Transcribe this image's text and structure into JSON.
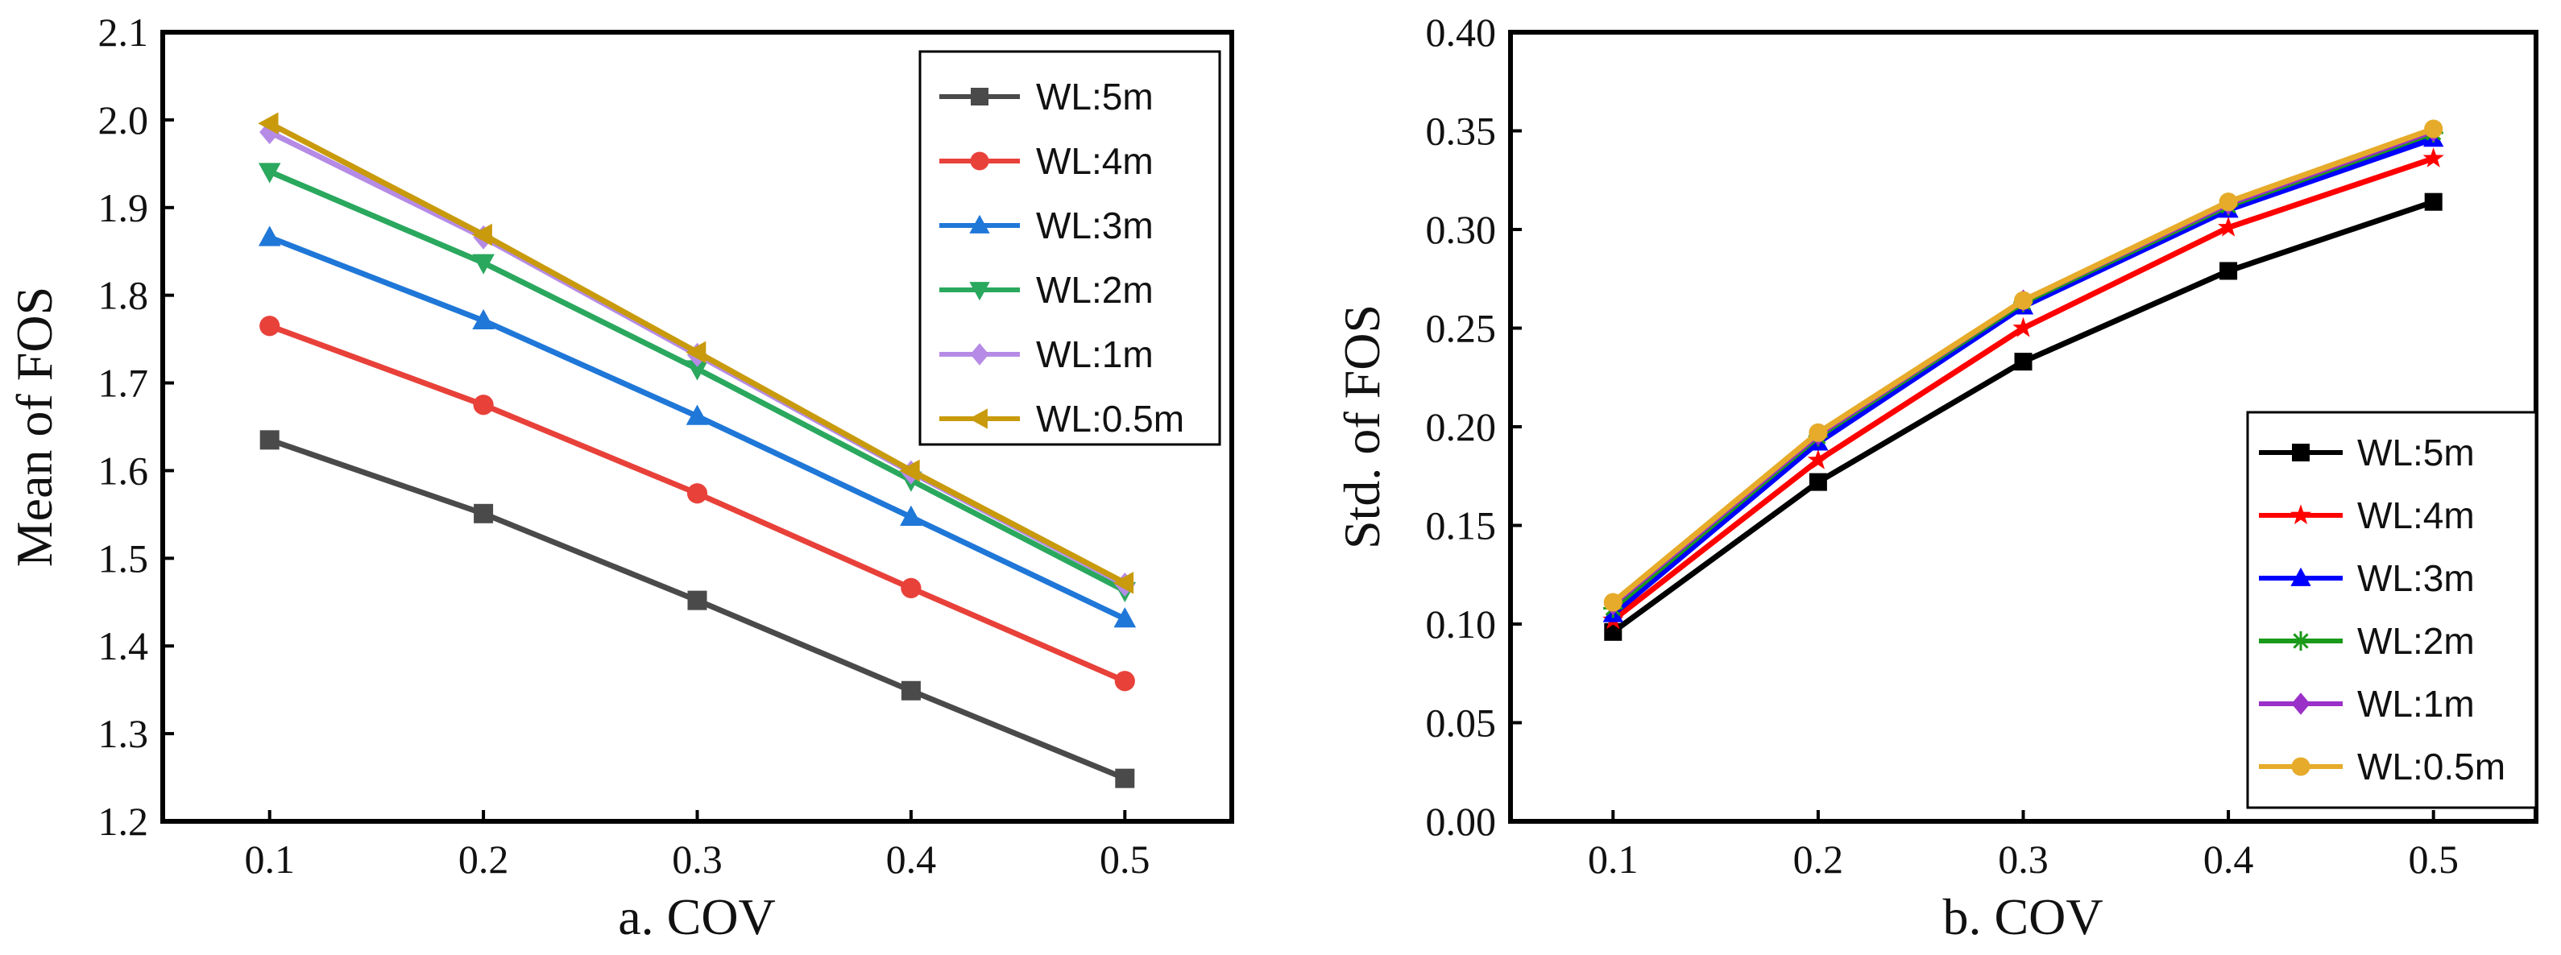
{
  "chart_data": [
    {
      "type": "line",
      "title": "",
      "xlabel": "a. COV",
      "ylabel": "Mean of FOS",
      "x": [
        0.1,
        0.2,
        0.3,
        0.4,
        0.5
      ],
      "x_ticks": [
        "0.1",
        "0.2",
        "0.3",
        "0.4",
        "0.5"
      ],
      "xlim": [
        0.05,
        0.55
      ],
      "ylim": [
        1.2,
        2.1
      ],
      "y_ticks": [
        "1.2",
        "1.3",
        "1.4",
        "1.5",
        "1.6",
        "1.7",
        "1.8",
        "1.9",
        "2.0",
        "2.1"
      ],
      "legend_position": "top-right",
      "series": [
        {
          "name": "WL:5m",
          "values": [
            1.635,
            1.551,
            1.452,
            1.349,
            1.249
          ],
          "color": "#4a4a4a",
          "marker": "square"
        },
        {
          "name": "WL:4m",
          "values": [
            1.765,
            1.675,
            1.574,
            1.466,
            1.36
          ],
          "color": "#e8413a",
          "marker": "circle"
        },
        {
          "name": "WL:3m",
          "values": [
            1.866,
            1.771,
            1.662,
            1.547,
            1.431
          ],
          "color": "#1f77d8",
          "marker": "triangle-up"
        },
        {
          "name": "WL:2m",
          "values": [
            1.941,
            1.837,
            1.716,
            1.589,
            1.463
          ],
          "color": "#2aa85e",
          "marker": "triangle-down"
        },
        {
          "name": "WL:1m",
          "values": [
            1.986,
            1.866,
            1.732,
            1.598,
            1.47
          ],
          "color": "#b58be6",
          "marker": "diamond"
        },
        {
          "name": "WL:0.5m",
          "values": [
            1.996,
            1.869,
            1.735,
            1.6,
            1.472
          ],
          "color": "#c89a0c",
          "marker": "triangle-left"
        }
      ]
    },
    {
      "type": "line",
      "title": "",
      "xlabel": "b. COV",
      "ylabel": "Std. of FOS",
      "x": [
        0.1,
        0.2,
        0.3,
        0.4,
        0.5
      ],
      "x_ticks": [
        "0.1",
        "0.2",
        "0.3",
        "0.4",
        "0.5"
      ],
      "xlim": [
        0.05,
        0.55
      ],
      "ylim": [
        0.0,
        0.4
      ],
      "y_ticks": [
        "0.00",
        "0.05",
        "0.10",
        "0.15",
        "0.20",
        "0.25",
        "0.30",
        "0.35",
        "0.40"
      ],
      "legend_position": "bottom-right",
      "series": [
        {
          "name": "WL:5m",
          "values": [
            0.096,
            0.172,
            0.233,
            0.279,
            0.314
          ],
          "color": "#000000",
          "marker": "square"
        },
        {
          "name": "WL:4m",
          "values": [
            0.102,
            0.183,
            0.25,
            0.301,
            0.336
          ],
          "color": "#ff0000",
          "marker": "star"
        },
        {
          "name": "WL:3m",
          "values": [
            0.105,
            0.192,
            0.261,
            0.31,
            0.346
          ],
          "color": "#0000ff",
          "marker": "triangle-up"
        },
        {
          "name": "WL:2m",
          "values": [
            0.108,
            0.195,
            0.263,
            0.312,
            0.349
          ],
          "color": "#1a9a1a",
          "marker": "asterisk"
        },
        {
          "name": "WL:1m",
          "values": [
            0.11,
            0.196,
            0.264,
            0.313,
            0.35
          ],
          "color": "#9b30c8",
          "marker": "diamond"
        },
        {
          "name": "WL:0.5m",
          "values": [
            0.111,
            0.197,
            0.264,
            0.314,
            0.351
          ],
          "color": "#e6ab2a",
          "marker": "circle"
        }
      ]
    }
  ]
}
